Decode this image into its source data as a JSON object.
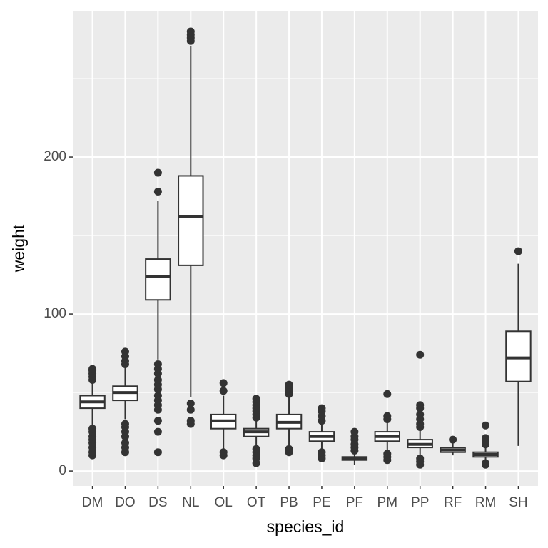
{
  "chart_data": {
    "type": "boxplot",
    "x_label": "species_id",
    "y_label": "weight",
    "categories": [
      "DM",
      "DO",
      "DS",
      "NL",
      "OL",
      "OT",
      "PB",
      "PE",
      "PF",
      "PM",
      "PP",
      "RF",
      "RM",
      "SH"
    ],
    "boxes": [
      {
        "min": 29,
        "q1": 40,
        "median": 44,
        "q3": 48,
        "max": 57,
        "outliers": [
          10,
          12,
          15,
          18,
          20,
          22,
          25,
          27,
          58,
          60,
          62,
          64,
          65
        ]
      },
      {
        "min": 33,
        "q1": 45,
        "median": 50,
        "q3": 54,
        "max": 66,
        "outliers": [
          12,
          15,
          18,
          22,
          25,
          28,
          30,
          68,
          70,
          73,
          76
        ]
      },
      {
        "min": 71,
        "q1": 109,
        "median": 124,
        "q3": 135,
        "max": 172,
        "outliers": [
          12,
          25,
          32,
          39,
          42,
          45,
          48,
          52,
          55,
          58,
          62,
          65,
          68,
          178,
          190
        ]
      },
      {
        "min": 47,
        "q1": 131,
        "median": 162,
        "q3": 188,
        "max": 271,
        "outliers": [
          30,
          32,
          39,
          43,
          274,
          276,
          278,
          280
        ]
      },
      {
        "min": 14,
        "q1": 27,
        "median": 32,
        "q3": 36,
        "max": 48,
        "outliers": [
          10,
          12,
          51,
          56
        ]
      },
      {
        "min": 16,
        "q1": 22,
        "median": 25,
        "q3": 27,
        "max": 32,
        "outliers": [
          5,
          8,
          10,
          12,
          14,
          34,
          36,
          38,
          40,
          42,
          44,
          46
        ]
      },
      {
        "min": 15,
        "q1": 27,
        "median": 31,
        "q3": 36,
        "max": 48,
        "outliers": [
          12,
          14,
          49,
          51,
          53,
          55
        ]
      },
      {
        "min": 13,
        "q1": 19,
        "median": 22,
        "q3": 25,
        "max": 31,
        "outliers": [
          8,
          10,
          12,
          32,
          35,
          38,
          40
        ]
      },
      {
        "min": 4,
        "q1": 7,
        "median": 8,
        "q3": 9,
        "max": 12,
        "outliers": [
          13,
          15,
          17,
          20,
          22,
          25
        ]
      },
      {
        "min": 13,
        "q1": 19,
        "median": 22,
        "q3": 25,
        "max": 31,
        "outliers": [
          7,
          9,
          11,
          33,
          35,
          49
        ]
      },
      {
        "min": 10,
        "q1": 15,
        "median": 17,
        "q3": 20,
        "max": 27,
        "outliers": [
          4,
          6,
          8,
          28,
          30,
          33,
          36,
          40,
          42,
          74
        ]
      },
      {
        "min": 10,
        "q1": 12,
        "median": 13.5,
        "q3": 15,
        "max": 18,
        "outliers": [
          20
        ]
      },
      {
        "min": 6,
        "q1": 9,
        "median": 10.5,
        "q3": 12,
        "max": 16,
        "outliers": [
          4,
          5,
          17,
          19,
          21,
          29
        ]
      },
      {
        "min": 16,
        "q1": 57,
        "median": 72,
        "q3": 89,
        "max": 132,
        "outliers": [
          140
        ]
      }
    ],
    "ylim": [
      -9.5,
      293.2
    ],
    "yticks": [
      0,
      100,
      200
    ],
    "minor_yticks": [
      50,
      150,
      250
    ],
    "grid": true,
    "color": "#333333",
    "box_fill": "#ffffff",
    "panel_color": "#ebebeb"
  }
}
